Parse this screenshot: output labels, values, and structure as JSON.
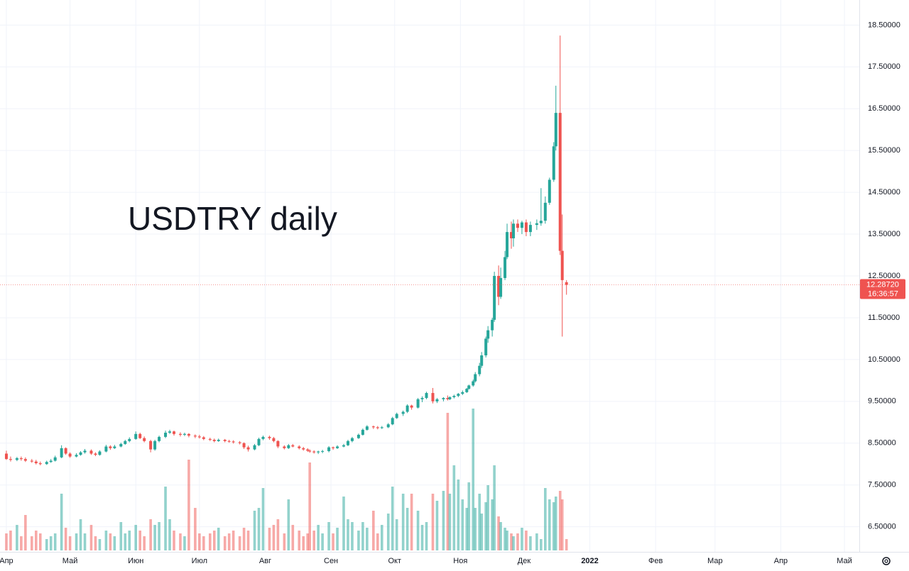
{
  "chart_data": {
    "type": "candlestick",
    "title": "USDTRY daily",
    "x": [
      0,
      2,
      5,
      7,
      9,
      12,
      14,
      16,
      19,
      21,
      23,
      26,
      28,
      30,
      33,
      35,
      37,
      40,
      42,
      44,
      47,
      49,
      51,
      54,
      56,
      58,
      61,
      63,
      65,
      68,
      70,
      72,
      75,
      77,
      79,
      82,
      84,
      86,
      89,
      91,
      93,
      96,
      98,
      100,
      103,
      105,
      107,
      110,
      112,
      114,
      117,
      119,
      121,
      124,
      126,
      128,
      131,
      133,
      135,
      138,
      140,
      142,
      143,
      145,
      147,
      149,
      152,
      154,
      156,
      159,
      161,
      163,
      166,
      168,
      170,
      173,
      175,
      177,
      180,
      182,
      184,
      187,
      189,
      191,
      194,
      196,
      198,
      201,
      203,
      206,
      208,
      209,
      211,
      213,
      215,
      217,
      218,
      220,
      221,
      223,
      224,
      226,
      227,
      229,
      230,
      232,
      233,
      235,
      236,
      238,
      239,
      241,
      243,
      245,
      247,
      250,
      252,
      254,
      256,
      258,
      259,
      261,
      262,
      264
    ],
    "open": [
      8.25,
      8.12,
      8.1,
      8.14,
      8.12,
      8.08,
      8.06,
      8.02,
      8.0,
      8.05,
      8.08,
      8.16,
      8.38,
      8.25,
      8.18,
      8.22,
      8.28,
      8.32,
      8.25,
      8.22,
      8.3,
      8.42,
      8.38,
      8.42,
      8.48,
      8.55,
      8.6,
      8.72,
      8.62,
      8.55,
      8.35,
      8.55,
      8.65,
      8.75,
      8.78,
      8.72,
      8.7,
      8.72,
      8.68,
      8.66,
      8.64,
      8.6,
      8.58,
      8.55,
      8.58,
      8.55,
      8.54,
      8.52,
      8.5,
      8.4,
      8.35,
      8.45,
      8.6,
      8.65,
      8.62,
      8.55,
      8.42,
      8.38,
      8.45,
      8.42,
      8.38,
      8.35,
      8.32,
      8.3,
      8.28,
      8.3,
      8.31,
      8.4,
      8.38,
      8.42,
      8.45,
      8.55,
      8.62,
      8.7,
      8.82,
      8.9,
      8.88,
      8.86,
      8.88,
      8.95,
      9.1,
      9.2,
      9.25,
      9.4,
      9.35,
      9.55,
      9.58,
      9.7,
      9.5,
      9.55,
      9.58,
      9.55,
      9.6,
      9.63,
      9.68,
      9.72,
      9.8,
      9.88,
      9.98,
      10.15,
      10.35,
      10.6,
      11.0,
      11.2,
      11.45,
      12.5,
      12.0,
      12.45,
      12.95,
      13.55,
      13.4,
      13.75,
      13.65,
      13.78,
      13.55,
      13.72,
      13.76,
      13.82,
      14.25,
      14.8,
      15.6,
      16.4,
      13.1,
      12.35
    ],
    "high": [
      8.32,
      8.18,
      8.17,
      8.18,
      8.16,
      8.12,
      8.1,
      8.06,
      8.08,
      8.12,
      8.2,
      8.45,
      8.4,
      8.28,
      8.26,
      8.31,
      8.36,
      8.35,
      8.28,
      8.33,
      8.46,
      8.45,
      8.46,
      8.51,
      8.58,
      8.64,
      8.78,
      8.75,
      8.66,
      8.58,
      8.58,
      8.68,
      8.8,
      8.82,
      8.8,
      8.76,
      8.75,
      8.74,
      8.71,
      8.7,
      8.67,
      8.63,
      8.61,
      8.61,
      8.6,
      8.58,
      8.57,
      8.55,
      8.52,
      8.44,
      8.48,
      8.63,
      8.68,
      8.68,
      8.65,
      8.57,
      8.45,
      8.48,
      8.48,
      8.45,
      8.41,
      8.38,
      8.35,
      8.33,
      8.32,
      8.34,
      8.43,
      8.42,
      8.45,
      8.48,
      8.58,
      8.65,
      8.73,
      8.85,
      8.93,
      8.92,
      8.91,
      8.91,
      8.98,
      9.13,
      9.23,
      9.28,
      9.43,
      9.42,
      9.58,
      9.62,
      9.73,
      9.82,
      9.58,
      9.6,
      9.64,
      9.62,
      9.66,
      9.7,
      9.76,
      9.82,
      9.9,
      10.02,
      10.2,
      10.42,
      10.68,
      11.05,
      11.3,
      11.5,
      12.6,
      12.75,
      12.7,
      13.1,
      13.75,
      13.8,
      13.85,
      13.85,
      13.82,
      13.85,
      13.8,
      13.85,
      14.6,
      14.4,
      14.85,
      15.7,
      17.05,
      18.25,
      13.97,
      12.4
    ],
    "low": [
      8.1,
      8.06,
      8.07,
      8.08,
      8.05,
      8.03,
      7.99,
      7.97,
      7.98,
      8.03,
      8.06,
      8.14,
      8.22,
      8.15,
      8.16,
      8.2,
      8.25,
      8.22,
      8.19,
      8.2,
      8.28,
      8.34,
      8.36,
      8.4,
      8.46,
      8.52,
      8.58,
      8.6,
      8.52,
      8.28,
      8.32,
      8.52,
      8.62,
      8.72,
      8.68,
      8.66,
      8.67,
      8.64,
      8.62,
      8.61,
      8.57,
      8.55,
      8.52,
      8.53,
      8.52,
      8.51,
      8.49,
      8.47,
      8.36,
      8.3,
      8.33,
      8.43,
      8.57,
      8.58,
      8.52,
      8.38,
      8.35,
      8.36,
      8.4,
      8.35,
      8.32,
      8.29,
      8.27,
      8.25,
      8.24,
      8.26,
      8.28,
      8.34,
      8.36,
      8.4,
      8.43,
      8.52,
      8.6,
      8.68,
      8.8,
      8.84,
      8.83,
      8.84,
      8.86,
      8.93,
      9.08,
      9.15,
      9.22,
      9.3,
      9.33,
      9.48,
      9.55,
      9.45,
      9.46,
      9.5,
      9.52,
      9.53,
      9.57,
      9.6,
      9.65,
      9.7,
      9.78,
      9.85,
      9.95,
      10.1,
      10.3,
      10.55,
      10.9,
      11.05,
      11.4,
      11.8,
      11.95,
      12.4,
      12.9,
      13.15,
      13.2,
      13.55,
      13.5,
      13.45,
      13.45,
      13.6,
      13.7,
      13.75,
      14.2,
      14.75,
      15.5,
      13.0,
      11.05,
      12.05
    ],
    "close": [
      8.12,
      8.1,
      8.14,
      8.12,
      8.08,
      8.06,
      8.02,
      8.0,
      8.05,
      8.08,
      8.16,
      8.38,
      8.25,
      8.18,
      8.22,
      8.28,
      8.32,
      8.25,
      8.22,
      8.3,
      8.42,
      8.38,
      8.42,
      8.48,
      8.55,
      8.6,
      8.72,
      8.62,
      8.55,
      8.35,
      8.55,
      8.65,
      8.75,
      8.78,
      8.72,
      8.7,
      8.72,
      8.68,
      8.66,
      8.64,
      8.6,
      8.58,
      8.55,
      8.58,
      8.55,
      8.54,
      8.52,
      8.5,
      8.4,
      8.35,
      8.45,
      8.6,
      8.65,
      8.62,
      8.55,
      8.42,
      8.38,
      8.45,
      8.42,
      8.38,
      8.35,
      8.32,
      8.3,
      8.28,
      8.3,
      8.31,
      8.4,
      8.38,
      8.42,
      8.45,
      8.55,
      8.62,
      8.7,
      8.82,
      8.9,
      8.88,
      8.86,
      8.88,
      8.95,
      9.1,
      9.2,
      9.25,
      9.4,
      9.35,
      9.55,
      9.58,
      9.7,
      9.5,
      9.55,
      9.58,
      9.55,
      9.6,
      9.63,
      9.68,
      9.72,
      9.8,
      9.88,
      9.98,
      10.15,
      10.35,
      10.6,
      11.0,
      11.2,
      11.45,
      12.5,
      12.0,
      12.45,
      12.95,
      13.55,
      13.4,
      13.75,
      13.65,
      13.78,
      13.55,
      13.72,
      13.76,
      13.82,
      14.25,
      14.8,
      15.6,
      16.4,
      13.1,
      12.4,
      12.2872
    ],
    "volume": [
      12,
      14,
      18,
      10,
      25,
      10,
      14,
      12,
      8,
      10,
      12,
      40,
      16,
      10,
      12,
      22,
      12,
      18,
      10,
      8,
      14,
      12,
      10,
      20,
      12,
      14,
      18,
      14,
      10,
      22,
      18,
      20,
      45,
      22,
      14,
      12,
      10,
      64,
      30,
      12,
      10,
      12,
      14,
      16,
      10,
      12,
      14,
      10,
      16,
      14,
      28,
      30,
      44,
      16,
      18,
      22,
      12,
      36,
      18,
      14,
      10,
      12,
      62,
      14,
      18,
      12,
      20,
      12,
      16,
      38,
      22,
      20,
      14,
      20,
      16,
      28,
      12,
      18,
      26,
      45,
      22,
      40,
      30,
      40,
      28,
      18,
      20,
      40,
      35,
      42,
      97,
      40,
      60,
      50,
      36,
      30,
      48,
      100,
      30,
      40,
      26,
      34,
      46,
      36,
      60,
      24,
      20,
      16,
      14,
      12,
      10,
      12,
      16,
      14,
      10,
      12,
      8,
      44,
      36,
      34,
      38,
      42,
      36,
      8
    ],
    "up_color": "#26a69a",
    "down_color": "#ef5350",
    "xlim": [
      -3,
      402
    ],
    "ylim": [
      5.9,
      19.1
    ],
    "vlim": [
      0,
      100
    ],
    "yticks": [
      {
        "value": 6.5,
        "label": "6.50000"
      },
      {
        "value": 7.5,
        "label": "7.50000"
      },
      {
        "value": 8.5,
        "label": "8.50000"
      },
      {
        "value": 9.5,
        "label": "9.50000"
      },
      {
        "value": 10.5,
        "label": "10.50000"
      },
      {
        "value": 11.5,
        "label": "11.50000"
      },
      {
        "value": 12.5,
        "label": "12.50000"
      },
      {
        "value": 13.5,
        "label": "13.50000"
      },
      {
        "value": 14.5,
        "label": "14.50000"
      },
      {
        "value": 15.5,
        "label": "15.50000"
      },
      {
        "value": 16.5,
        "label": "16.50000"
      },
      {
        "value": 17.5,
        "label": "17.50000"
      },
      {
        "value": 18.5,
        "label": "18.50000"
      }
    ],
    "xticks": [
      {
        "value": 0,
        "label": "Апр"
      },
      {
        "value": 30,
        "label": "Май"
      },
      {
        "value": 61,
        "label": "Июн"
      },
      {
        "value": 91,
        "label": "Июл"
      },
      {
        "value": 122,
        "label": "Авг"
      },
      {
        "value": 153,
        "label": "Сен"
      },
      {
        "value": 183,
        "label": "Окт"
      },
      {
        "value": 214,
        "label": "Ноя"
      },
      {
        "value": 244,
        "label": "Дек"
      },
      {
        "value": 275,
        "label": "2022"
      },
      {
        "value": 306,
        "label": "Фев"
      },
      {
        "value": 334,
        "label": "Мар"
      },
      {
        "value": 365,
        "label": "Апр"
      },
      {
        "value": 395,
        "label": "Май"
      }
    ],
    "last_price": {
      "value": 12.2872,
      "label": "12.28720"
    },
    "countdown": "16:36:57",
    "grid": true
  }
}
